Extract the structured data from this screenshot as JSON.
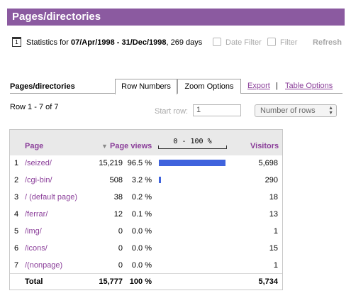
{
  "title": "Pages/directories",
  "stats": {
    "prefix": "Statistics for ",
    "range": "07/Apr/1998 - 31/Dec/1998",
    "suffix": ", 269 days",
    "date_filter_label": "Date Filter",
    "filter_label": "Filter",
    "refresh_label": "Refresh"
  },
  "tabs": {
    "section_label": "Pages/directories",
    "row_numbers": "Row Numbers",
    "zoom_options": "Zoom Options",
    "export": "Export",
    "separator": "|",
    "table_options": "Table Options"
  },
  "controls": {
    "row_info": "Row 1 - 7 of 7",
    "start_row_label": "Start row:",
    "start_row_value": "1",
    "rows_select_value": "Number of rows"
  },
  "table": {
    "headers": {
      "page": "Page",
      "page_views": "Page views",
      "scale": "0 - 100 %",
      "visitors": "Visitors"
    },
    "bar_color": "#3f63dd",
    "rows": [
      {
        "num": "1",
        "page": "/seized/",
        "views": "15,219",
        "pct": "96.5 %",
        "share": 96.5,
        "visitors": "5,698"
      },
      {
        "num": "2",
        "page": "/cgi-bin/",
        "views": "508",
        "pct": "3.2 %",
        "share": 3.2,
        "visitors": "290"
      },
      {
        "num": "3",
        "page": "/ (default page)",
        "views": "38",
        "pct": "0.2 %",
        "share": 0.2,
        "visitors": "18"
      },
      {
        "num": "4",
        "page": "/ferrar/",
        "views": "12",
        "pct": "0.1 %",
        "share": 0.1,
        "visitors": "13"
      },
      {
        "num": "5",
        "page": "/img/",
        "views": "0",
        "pct": "0.0 %",
        "share": 0.0,
        "visitors": "1"
      },
      {
        "num": "6",
        "page": "/icons/",
        "views": "0",
        "pct": "0.0 %",
        "share": 0.0,
        "visitors": "15"
      },
      {
        "num": "7",
        "page": "/(nonpage)",
        "views": "0",
        "pct": "0.0 %",
        "share": 0.0,
        "visitors": "1"
      }
    ],
    "total": {
      "label": "Total",
      "views": "15,777",
      "pct": "100 %",
      "visitors": "5,734"
    }
  }
}
